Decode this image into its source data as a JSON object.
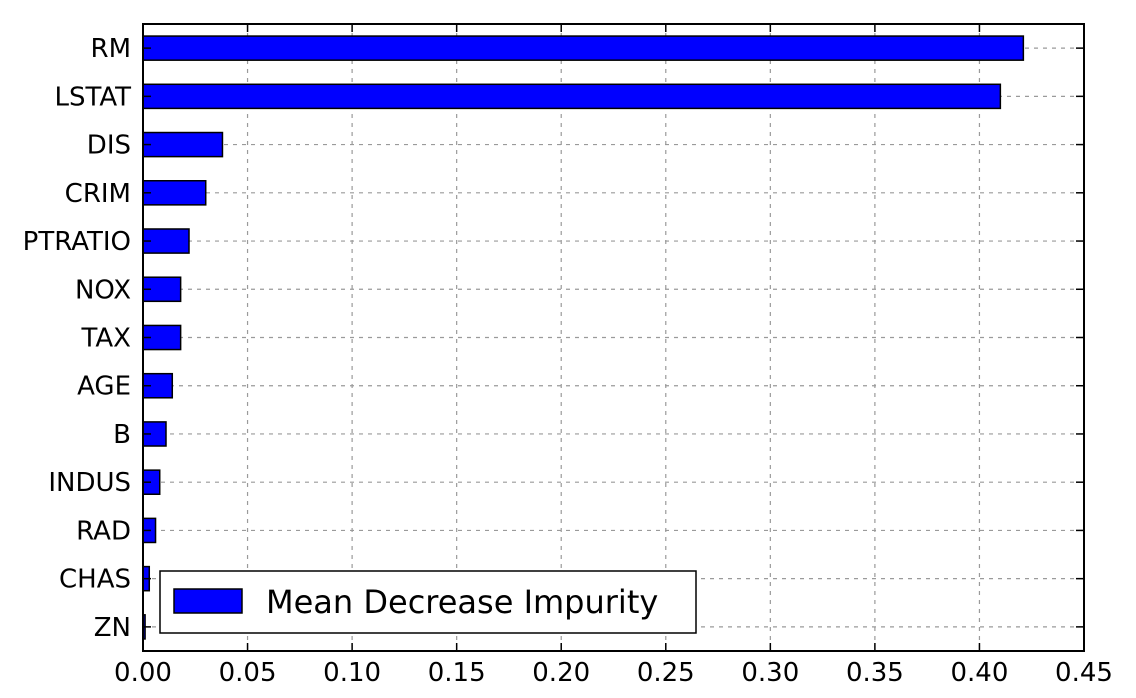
{
  "chart_data": {
    "type": "bar",
    "orientation": "horizontal",
    "title": "",
    "xlabel": "",
    "ylabel": "",
    "categories": [
      "RM",
      "LSTAT",
      "DIS",
      "CRIM",
      "PTRATIO",
      "NOX",
      "TAX",
      "AGE",
      "B",
      "INDUS",
      "RAD",
      "CHAS",
      "ZN"
    ],
    "series": [
      {
        "name": "Mean Decrease Impurity",
        "color": "#0000ff",
        "values": [
          0.421,
          0.41,
          0.038,
          0.03,
          0.022,
          0.018,
          0.018,
          0.014,
          0.011,
          0.008,
          0.006,
          0.003,
          0.001
        ]
      }
    ],
    "xlim": [
      0,
      0.45
    ],
    "xticks": [
      "0.00",
      "0.05",
      "0.10",
      "0.15",
      "0.20",
      "0.25",
      "0.30",
      "0.35",
      "0.40",
      "0.45"
    ],
    "grid": true,
    "legend_position": "lower-left"
  }
}
